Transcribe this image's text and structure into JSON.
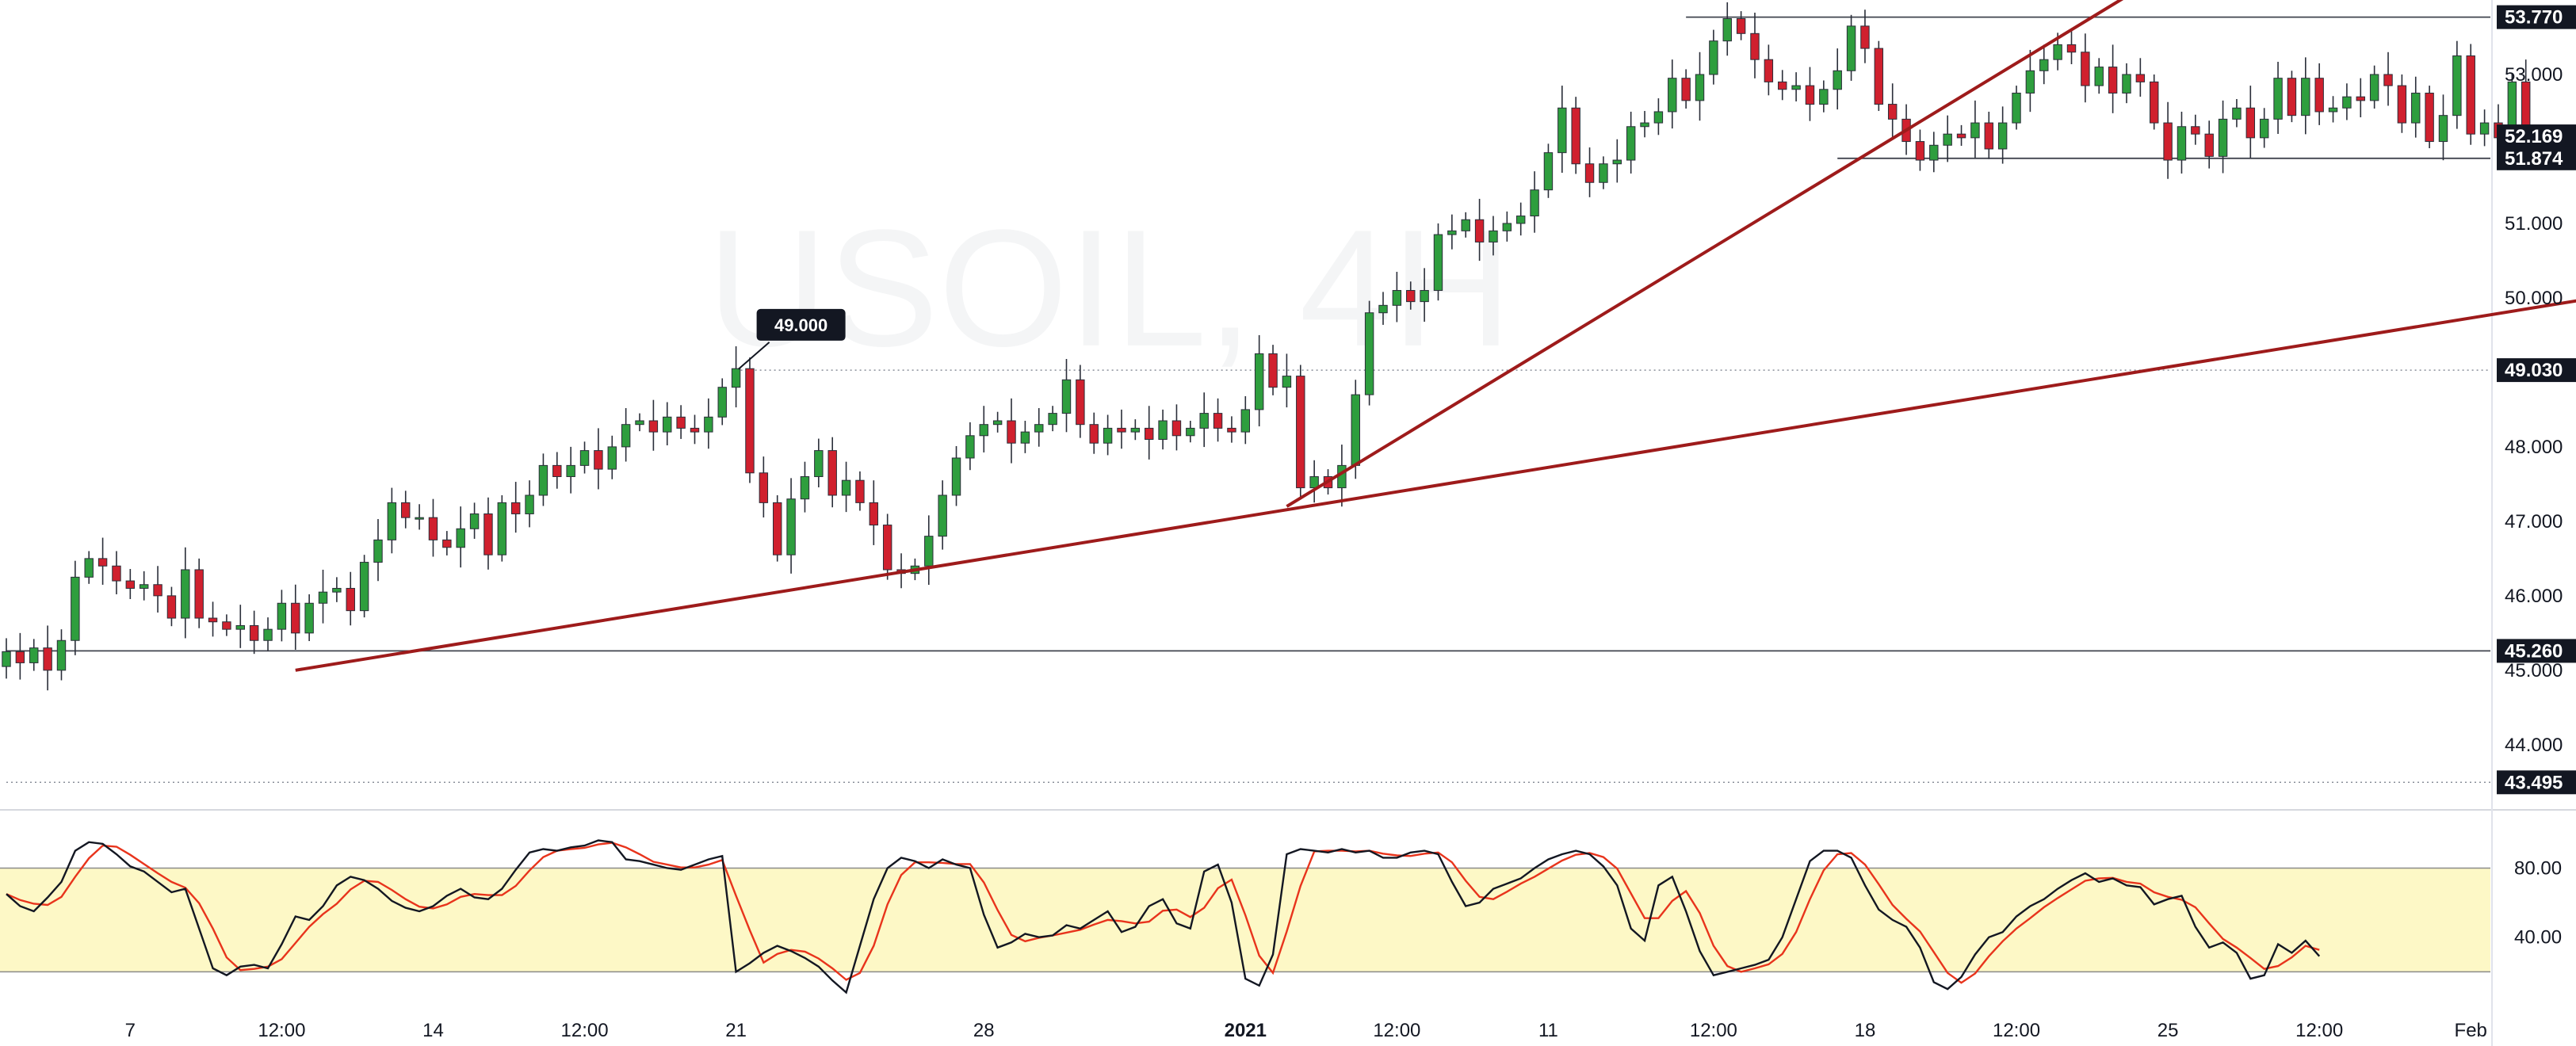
{
  "chart_data": [
    {
      "type": "candlestick",
      "watermark": "USOIL, 4H",
      "x_ticks": [
        {
          "label": "7",
          "i": 9
        },
        {
          "label": "12:00",
          "i": 20
        },
        {
          "label": "14",
          "i": 31
        },
        {
          "label": "12:00",
          "i": 42
        },
        {
          "label": "21",
          "i": 53
        },
        {
          "label": "28",
          "i": 71
        },
        {
          "label": "2021",
          "i": 90
        },
        {
          "label": "12:00",
          "i": 101
        },
        {
          "label": "11",
          "i": 112
        },
        {
          "label": "12:00",
          "i": 124
        },
        {
          "label": "18",
          "i": 135
        },
        {
          "label": "12:00",
          "i": 146
        },
        {
          "label": "25",
          "i": 157
        },
        {
          "label": "12:00",
          "i": 168
        },
        {
          "label": "Feb",
          "i": 179
        }
      ],
      "y_ticks": [
        "44.000",
        "45.000",
        "46.000",
        "47.000",
        "48.000",
        "49.000",
        "50.000",
        "51.000",
        "52.000",
        "53.000"
      ],
      "y_range": [
        43.2,
        54.0
      ],
      "price_labels": [
        {
          "text": "53.770",
          "value": 53.77,
          "kind": "level"
        },
        {
          "text": "52.169",
          "value": 52.169,
          "kind": "price"
        },
        {
          "text": "51.874",
          "value": 51.874,
          "kind": "level"
        },
        {
          "text": "49.030",
          "value": 49.03,
          "kind": "level"
        },
        {
          "text": "45.260",
          "value": 45.26,
          "kind": "level"
        },
        {
          "text": "43.495",
          "value": 43.495,
          "kind": "level"
        }
      ],
      "annotations": [
        {
          "text": "49.000",
          "i": 53,
          "value": 49.0
        }
      ],
      "horizontal_levels": [
        {
          "value": 53.77,
          "from_i": 122,
          "style": "solid"
        },
        {
          "value": 51.874,
          "from_i": 133,
          "style": "solid"
        },
        {
          "value": 49.03,
          "from_i": 53,
          "style": "dotted"
        },
        {
          "value": 45.26,
          "from_i": 0,
          "style": "solid"
        },
        {
          "value": 43.495,
          "from_i": 0,
          "style": "dotted"
        }
      ],
      "trendlines": [
        {
          "from": {
            "i": 21,
            "value": 45.0
          },
          "to": {
            "i": 188,
            "value": 50.0
          }
        },
        {
          "from": {
            "i": 93,
            "value": 47.2
          },
          "to": {
            "i": 154,
            "value": 54.05
          }
        }
      ],
      "candle_colors": {
        "up": "#2e9e3e",
        "down": "#d0202e",
        "wick": "#2a2e39"
      },
      "closes": [
        45.25,
        45.1,
        45.3,
        45.0,
        45.4,
        46.25,
        46.5,
        46.4,
        46.2,
        46.1,
        46.15,
        46.0,
        45.7,
        46.35,
        45.7,
        45.65,
        45.55,
        45.6,
        45.4,
        45.55,
        45.9,
        45.5,
        45.9,
        46.05,
        46.1,
        45.8,
        46.45,
        46.75,
        47.25,
        47.05,
        47.05,
        46.75,
        46.65,
        46.9,
        47.1,
        46.55,
        47.25,
        47.1,
        47.35,
        47.75,
        47.6,
        47.75,
        47.95,
        47.7,
        48.0,
        48.3,
        48.35,
        48.2,
        48.4,
        48.25,
        48.2,
        48.4,
        48.8,
        49.05,
        47.65,
        47.25,
        46.55,
        47.3,
        47.6,
        47.95,
        47.35,
        47.55,
        47.25,
        46.95,
        46.35,
        46.3,
        46.4,
        46.8,
        47.35,
        47.85,
        48.15,
        48.3,
        48.35,
        48.05,
        48.2,
        48.3,
        48.45,
        48.9,
        48.3,
        48.05,
        48.25,
        48.2,
        48.25,
        48.1,
        48.35,
        48.15,
        48.25,
        48.45,
        48.25,
        48.2,
        48.5,
        49.25,
        48.8,
        48.95,
        47.45,
        47.6,
        47.45,
        47.75,
        48.7,
        49.8,
        49.9,
        50.1,
        49.95,
        50.1,
        50.85,
        50.9,
        51.05,
        50.75,
        50.9,
        51.0,
        51.1,
        51.45,
        51.95,
        52.55,
        51.8,
        51.55,
        51.8,
        51.85,
        52.3,
        52.35,
        52.5,
        52.95,
        52.65,
        53.0,
        53.45,
        53.75,
        53.55,
        53.2,
        52.9,
        52.8,
        52.85,
        52.6,
        52.8,
        53.05,
        53.65,
        53.35,
        52.6,
        52.4,
        52.1,
        51.85,
        52.05,
        52.2,
        52.15,
        52.35,
        52.0,
        52.35,
        52.75,
        53.05,
        53.2,
        53.4,
        53.3,
        52.85,
        53.1,
        52.75,
        53.0,
        52.9,
        52.35,
        51.85,
        52.3,
        52.2,
        51.9,
        52.4,
        52.55,
        52.15,
        52.4,
        52.95,
        52.45,
        52.95,
        52.5,
        52.55,
        52.7,
        52.65,
        53.0,
        52.85,
        52.35,
        52.75,
        52.1,
        52.45,
        53.25,
        52.2,
        52.35,
        52.15,
        52.9,
        52.17
      ]
    },
    {
      "type": "line",
      "indicator": "stochastic",
      "y_ticks": [
        "40.00",
        "80.00"
      ],
      "y_range": [
        0,
        110
      ],
      "band": {
        "lower": 20,
        "upper": 80
      },
      "series_colors": {
        "k": "#131722",
        "d": "#e8341c"
      },
      "k_values": [
        65,
        58,
        55,
        63,
        72,
        90,
        95,
        94,
        88,
        81,
        78,
        72,
        66,
        68,
        45,
        22,
        18,
        23,
        24,
        22,
        36,
        52,
        50,
        58,
        70,
        75,
        73,
        68,
        61,
        57,
        55,
        58,
        64,
        68,
        63,
        62,
        68,
        79,
        89,
        91,
        90,
        92,
        93,
        96,
        95,
        85,
        84,
        82,
        80,
        79,
        82,
        85,
        87,
        20,
        25,
        31,
        35,
        32,
        28,
        23,
        15,
        8,
        35,
        62,
        80,
        86,
        84,
        80,
        85,
        82,
        80,
        53,
        34,
        37,
        42,
        40,
        41,
        47,
        45,
        50,
        55,
        43,
        46,
        58,
        62,
        48,
        45,
        78,
        82,
        60,
        16,
        12,
        30,
        88,
        91,
        90,
        89,
        91,
        89,
        90,
        86,
        86,
        89,
        90,
        88,
        72,
        58,
        60,
        68,
        71,
        74,
        80,
        85,
        88,
        90,
        88,
        81,
        70,
        45,
        38,
        70,
        75,
        55,
        32,
        18,
        20,
        22,
        24,
        27,
        40,
        62,
        84,
        90,
        90,
        86,
        70,
        56,
        50,
        46,
        34,
        14,
        10,
        17,
        30,
        40,
        43,
        52,
        58,
        62,
        68,
        73,
        77,
        72,
        74,
        70,
        69,
        59,
        62,
        64,
        46,
        34,
        37,
        31,
        16,
        18,
        36,
        31,
        38,
        29
      ]
    }
  ]
}
